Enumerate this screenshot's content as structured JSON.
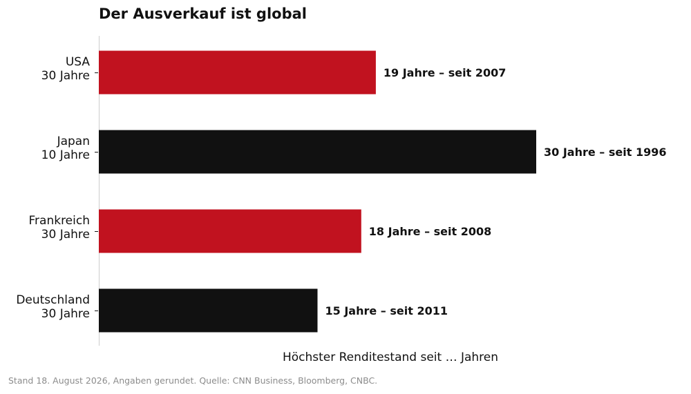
{
  "chart_data": {
    "type": "bar",
    "orientation": "horizontal",
    "title": "Der Ausverkauf ist global",
    "categories": [
      {
        "line1": "USA",
        "line2": "30 Jahre"
      },
      {
        "line1": "Japan",
        "line2": "10 Jahre"
      },
      {
        "line1": "Frankreich",
        "line2": "30 Jahre"
      },
      {
        "line1": "Deutschland",
        "line2": "30 Jahre"
      }
    ],
    "values": [
      19,
      30,
      18,
      15
    ],
    "data_labels": [
      "19 Jahre – seit 2007",
      "30 Jahre – seit 1996",
      "18 Jahre – seit 2008",
      "15 Jahre – seit 2011"
    ],
    "bar_colors": [
      "#c1121f",
      "#111111",
      "#c1121f",
      "#111111"
    ],
    "xlabel": "Höchster Renditestand seit … Jahren",
    "ylabel": "",
    "xlim": [
      0,
      30
    ],
    "x_ticks_visible": false,
    "grid": false,
    "legend": "none"
  },
  "footer": "Stand 18. August 2026, Angaben gerundet. Quelle: CNN Business, Bloomberg, CNBC."
}
